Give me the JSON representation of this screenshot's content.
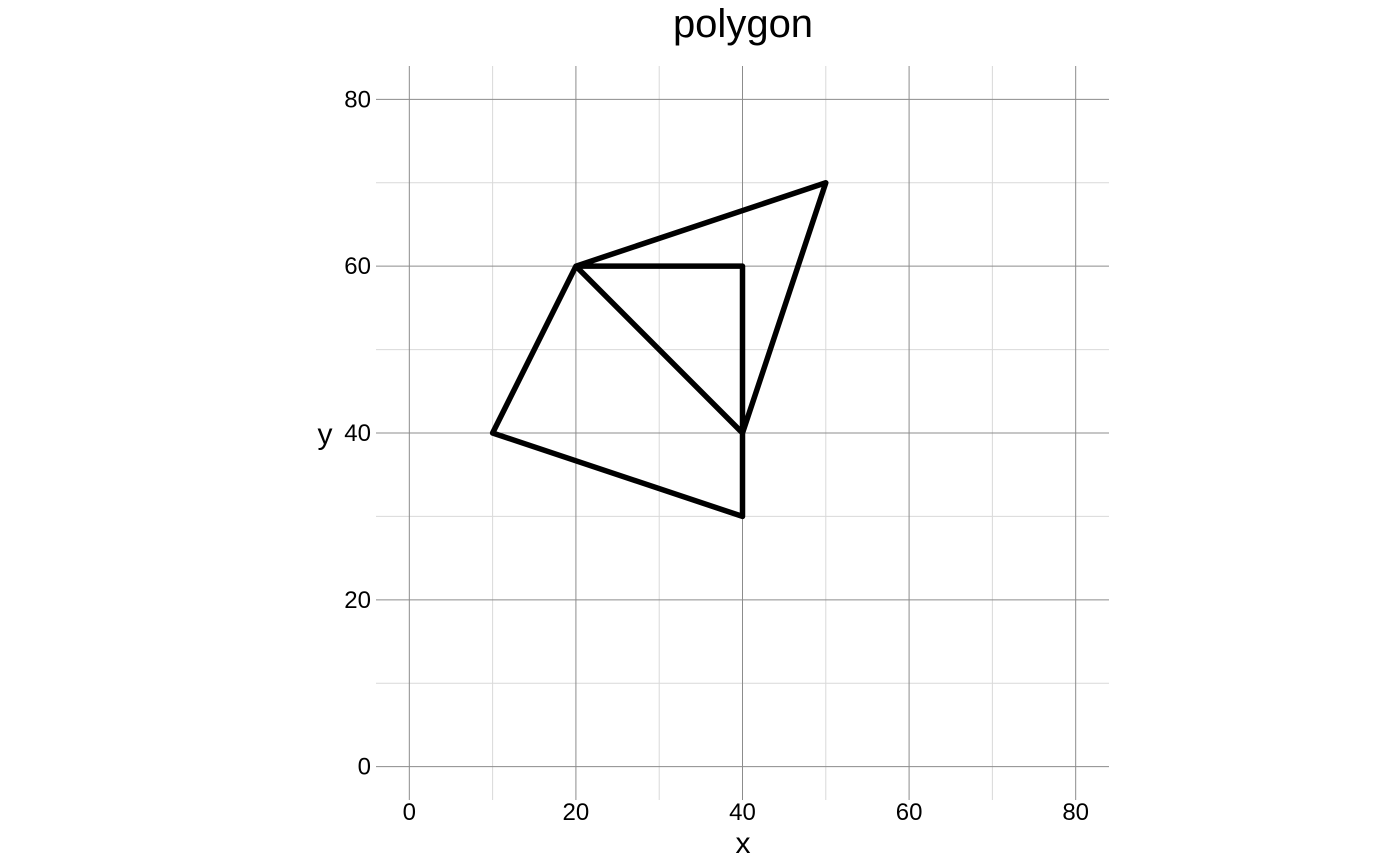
{
  "chart_data": {
    "type": "line",
    "title": "polygon",
    "xlabel": "x",
    "ylabel": "y",
    "xlim": [
      -4,
      84
    ],
    "ylim": [
      -4,
      84
    ],
    "x_ticks": [
      0,
      20,
      40,
      60,
      80
    ],
    "y_ticks": [
      0,
      20,
      40,
      60,
      80
    ],
    "x_minor": [
      10,
      30,
      50,
      70
    ],
    "y_minor": [
      10,
      30,
      50,
      70
    ],
    "grid": true,
    "line_color": "#000000",
    "series": [
      {
        "points": [
          [
            20,
            60
          ],
          [
            40,
            60
          ],
          [
            40,
            40
          ],
          [
            20,
            60
          ],
          [
            50,
            70
          ],
          [
            40,
            40
          ],
          [
            40,
            30
          ],
          [
            10,
            40
          ],
          [
            20,
            60
          ]
        ]
      }
    ]
  }
}
